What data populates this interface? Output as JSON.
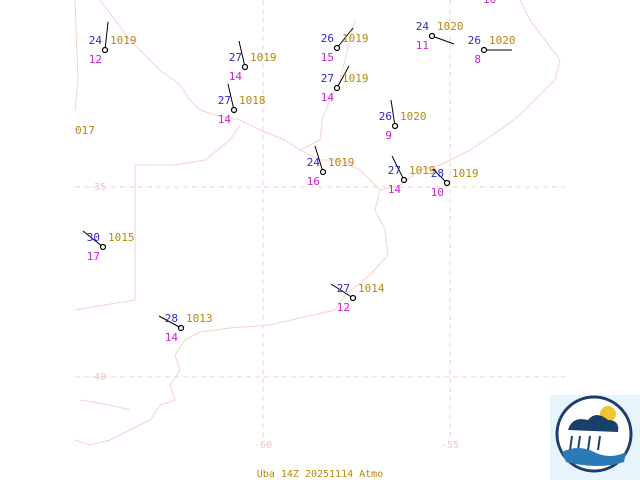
{
  "stations": [
    {
      "temperature": 24,
      "pressure": 1019,
      "dewpoint": 12
    },
    {
      "temperature": 27,
      "pressure": 1019,
      "dewpoint": 14
    },
    {
      "temperature": 27,
      "pressure": 1018,
      "dewpoint": 14
    },
    {
      "temperature": 26,
      "pressure": 1019,
      "dewpoint": 15
    },
    {
      "temperature": 27,
      "pressure": 1019,
      "dewpoint": 14
    },
    {
      "temperature": 24,
      "pressure": 1020,
      "dewpoint": 11
    },
    {
      "temperature": 26,
      "pressure": 1020,
      "dewpoint": 8
    },
    {
      "temperature": 26,
      "pressure": 1020,
      "dewpoint": 9
    },
    {
      "temperature": 24,
      "pressure": 1019,
      "dewpoint": 16
    },
    {
      "temperature": 27,
      "pressure": 1019,
      "dewpoint": 14
    },
    {
      "temperature": 28,
      "pressure": 1019,
      "dewpoint": 10
    },
    {
      "temperature": 30,
      "pressure": 1015,
      "dewpoint": 17
    },
    {
      "temperature": 27,
      "pressure": 1014,
      "dewpoint": 12
    },
    {
      "temperature": 28,
      "pressure": 1013,
      "dewpoint": 14
    }
  ],
  "partial_labels": [
    "017",
    "10"
  ],
  "grid_labels": {
    "lat": [
      "-35",
      "-40"
    ],
    "lon": [
      "-60",
      "-55"
    ]
  },
  "footer": "Uba 14Z 20251114 Atmo"
}
